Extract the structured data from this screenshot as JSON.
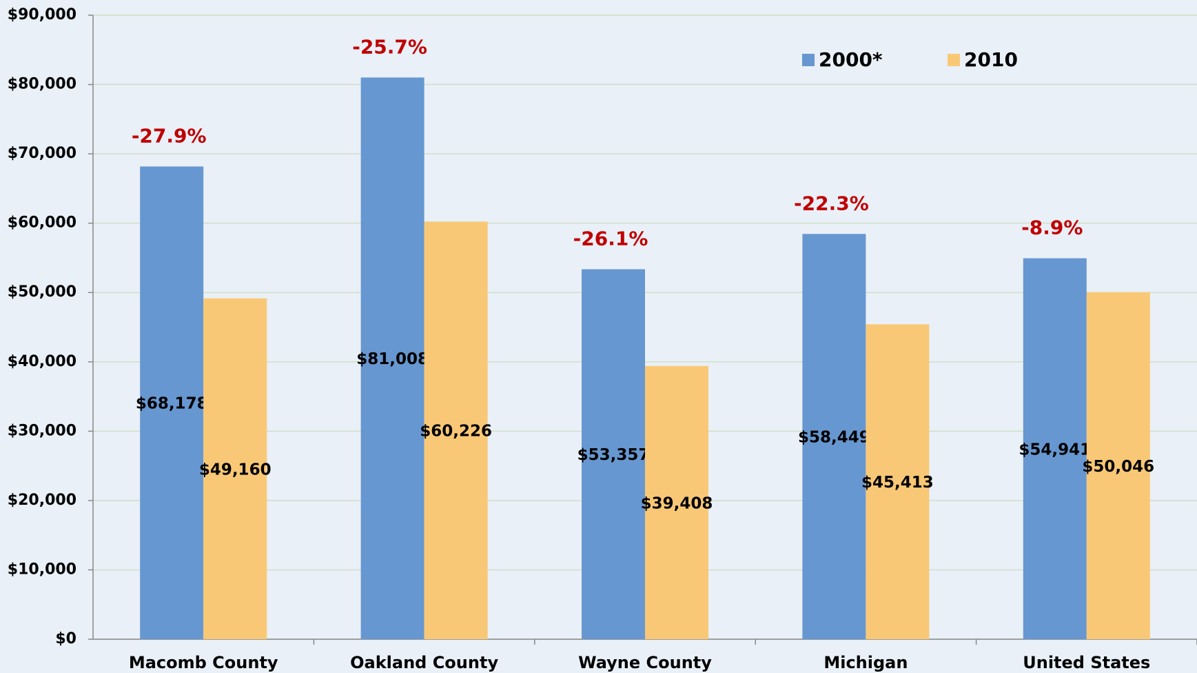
{
  "chart_data": {
    "type": "bar",
    "categories": [
      "Macomb County",
      "Oakland County",
      "Wayne County",
      "Michigan",
      "United States"
    ],
    "series": [
      {
        "name": "2000*",
        "color": "#6797d0",
        "values": [
          68178,
          81008,
          53357,
          58449,
          54941
        ],
        "value_labels": [
          "$68,178",
          "$81,008",
          "$53,357",
          "$58,449",
          "$54,941"
        ]
      },
      {
        "name": "2010",
        "color": "#f9c876",
        "values": [
          49160,
          60226,
          39408,
          45413,
          50046
        ],
        "value_labels": [
          "$49,160",
          "$60,226",
          "$39,408",
          "$45,413",
          "$50,046"
        ]
      }
    ],
    "annotations": [
      "-27.9%",
      "-25.7%",
      "-26.1%",
      "-22.3%",
      "-8.9%"
    ],
    "ylim": [
      0,
      90000
    ],
    "yticks": [
      {
        "value": 0,
        "label": "$0"
      },
      {
        "value": 10000,
        "label": "$10,000"
      },
      {
        "value": 20000,
        "label": "$20,000"
      },
      {
        "value": 30000,
        "label": "$30,000"
      },
      {
        "value": 40000,
        "label": "$40,000"
      },
      {
        "value": 50000,
        "label": "$50,000"
      },
      {
        "value": 60000,
        "label": "$60,000"
      },
      {
        "value": 70000,
        "label": "$70,000"
      },
      {
        "value": 80000,
        "label": "$80,000"
      },
      {
        "value": 90000,
        "label": "$90,000"
      }
    ],
    "grid": true,
    "legend": "top-right"
  }
}
